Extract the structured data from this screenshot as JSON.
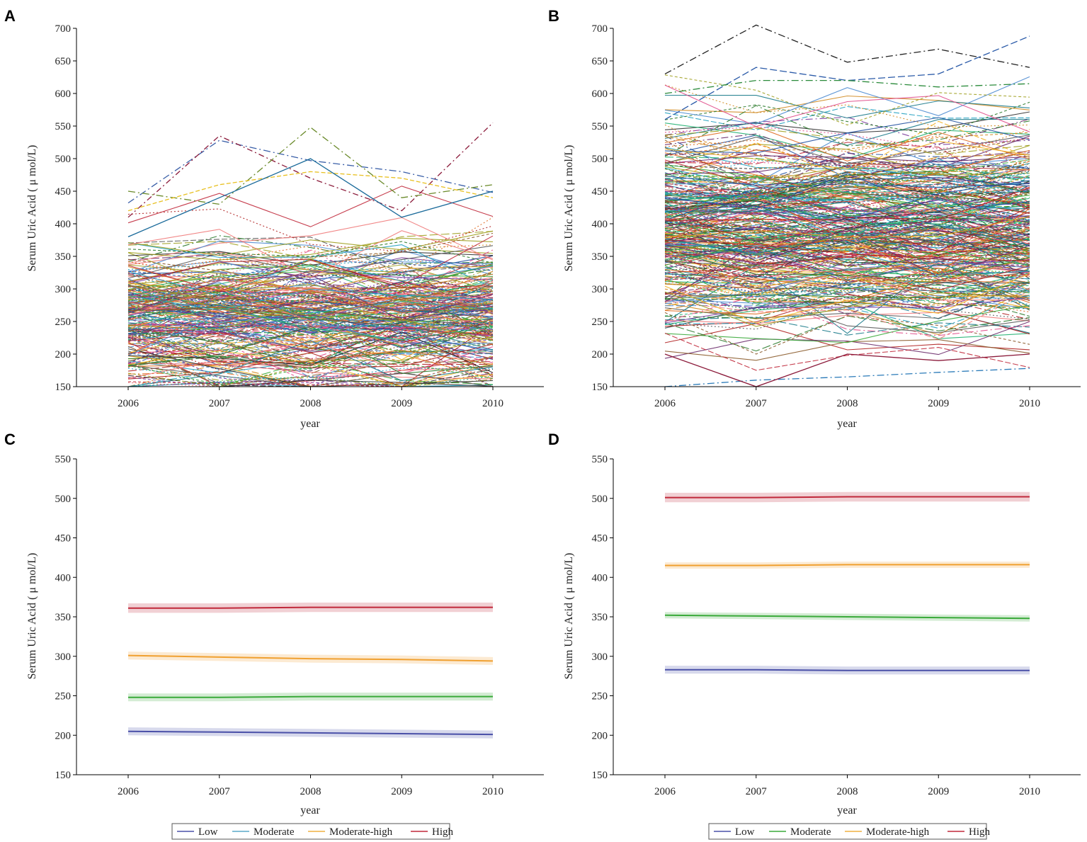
{
  "chart_data": [
    {
      "panel": "A",
      "type": "line",
      "description_kind": "spaghetti",
      "xlabel": "year",
      "ylabel": "Serum Uric Acid ( μ mol/L)",
      "x": [
        2006,
        2007,
        2008,
        2009,
        2010
      ],
      "xticks": [
        "2006",
        "2007",
        "2008",
        "2009",
        "2010"
      ],
      "ylim": [
        150,
        700
      ],
      "yticks": [
        150,
        200,
        250,
        300,
        350,
        400,
        450,
        500,
        550,
        600,
        650,
        700
      ],
      "spaghetti": {
        "center": 262,
        "spread": 55,
        "lines": 260,
        "min": 150,
        "max": 560,
        "seed": 11
      },
      "highlight_series": [
        {
          "values": [
            432,
            528,
            497,
            480,
            448
          ],
          "color": "#3a5fa8",
          "dash": "10 4 2 4"
        },
        {
          "values": [
            410,
            535,
            470,
            420,
            555
          ],
          "color": "#8b1a3a",
          "dash": "8 4 2 4"
        },
        {
          "values": [
            450,
            430,
            548,
            440,
            460
          ],
          "color": "#6a8a2a",
          "dash": "10 4 2 4"
        },
        {
          "values": [
            420,
            460,
            480,
            470,
            440
          ],
          "color": "#e8c020",
          "dash": "6 3"
        },
        {
          "values": [
            380,
            440,
            500,
            410,
            450
          ],
          "color": "#1a6a9a",
          "dash": ""
        }
      ]
    },
    {
      "panel": "B",
      "type": "line",
      "description_kind": "spaghetti",
      "xlabel": "year",
      "ylabel": "Serum Uric Acid ( μ mol/L)",
      "x": [
        2006,
        2007,
        2008,
        2009,
        2010
      ],
      "xticks": [
        "2006",
        "2007",
        "2008",
        "2009",
        "2010"
      ],
      "ylim": [
        150,
        700
      ],
      "yticks": [
        150,
        200,
        250,
        300,
        350,
        400,
        450,
        500,
        550,
        600,
        650,
        700
      ],
      "spaghetti": {
        "center": 385,
        "spread": 75,
        "lines": 340,
        "min": 150,
        "max": 705,
        "seed": 29
      },
      "highlight_series": [
        {
          "values": [
            630,
            705,
            648,
            668,
            640
          ],
          "color": "#222222",
          "dash": "10 4 2 4"
        },
        {
          "values": [
            560,
            640,
            620,
            630,
            688
          ],
          "color": "#2a5aa8",
          "dash": "10 4"
        },
        {
          "values": [
            600,
            620,
            620,
            610,
            615
          ],
          "color": "#2a8a3a",
          "dash": "10 4 2 4"
        },
        {
          "values": [
            150,
            160,
            165,
            172,
            178
          ],
          "color": "#2a7ab8",
          "dash": "10 4 2 4"
        },
        {
          "values": [
            200,
            150,
            200,
            190,
            200
          ],
          "color": "#8b1a3a",
          "dash": ""
        }
      ]
    },
    {
      "panel": "C",
      "type": "line",
      "xlabel": "year",
      "ylabel": "Serum Uric Acid ( μ mol/L)",
      "x": [
        2006,
        2007,
        2008,
        2009,
        2010
      ],
      "xticks": [
        "2006",
        "2007",
        "2008",
        "2009",
        "2010"
      ],
      "ylim": [
        150,
        550
      ],
      "yticks": [
        150,
        200,
        250,
        300,
        350,
        400,
        450,
        500,
        550
      ],
      "series": [
        {
          "name": "Low",
          "values": [
            205,
            204,
            203,
            202,
            201
          ],
          "ci": 5,
          "color": "#4a50a8"
        },
        {
          "name": "Moderate",
          "values": [
            248,
            248,
            249,
            249,
            249
          ],
          "ci": 5,
          "color": "#3aaa3a"
        },
        {
          "name": "Moderate-high",
          "values": [
            301,
            299,
            297,
            296,
            294
          ],
          "ci": 5,
          "color": "#f0a030"
        },
        {
          "name": "High",
          "values": [
            361,
            361,
            362,
            362,
            362
          ],
          "ci": 6,
          "color": "#c0283a"
        }
      ],
      "legend": [
        {
          "name": "Low",
          "color": "#4a50a8"
        },
        {
          "name": "Moderate",
          "color": "#5aa8c8"
        },
        {
          "name": "Moderate-high",
          "color": "#f0b040"
        },
        {
          "name": "High",
          "color": "#c0283a"
        }
      ]
    },
    {
      "panel": "D",
      "type": "line",
      "xlabel": "year",
      "ylabel": "Serum Uric Acid ( μ mol/L)",
      "x": [
        2006,
        2007,
        2008,
        2009,
        2010
      ],
      "xticks": [
        "2006",
        "2007",
        "2008",
        "2009",
        "2010"
      ],
      "ylim": [
        150,
        550
      ],
      "yticks": [
        150,
        200,
        250,
        300,
        350,
        400,
        450,
        500,
        550
      ],
      "series": [
        {
          "name": "Low",
          "values": [
            283,
            283,
            282,
            282,
            282
          ],
          "ci": 5,
          "color": "#4a50a8"
        },
        {
          "name": "Moderate",
          "values": [
            352,
            351,
            350,
            349,
            348
          ],
          "ci": 4,
          "color": "#3aaa3a"
        },
        {
          "name": "Moderate-high",
          "values": [
            415,
            415,
            416,
            416,
            416
          ],
          "ci": 4,
          "color": "#f0a030"
        },
        {
          "name": "High",
          "values": [
            501,
            501,
            502,
            502,
            502
          ],
          "ci": 6,
          "color": "#c0283a"
        }
      ],
      "legend": [
        {
          "name": "Low",
          "color": "#4a50a8"
        },
        {
          "name": "Moderate",
          "color": "#3aaa3a"
        },
        {
          "name": "Moderate-high",
          "color": "#f0b040"
        },
        {
          "name": "High",
          "color": "#c0283a"
        }
      ]
    }
  ]
}
